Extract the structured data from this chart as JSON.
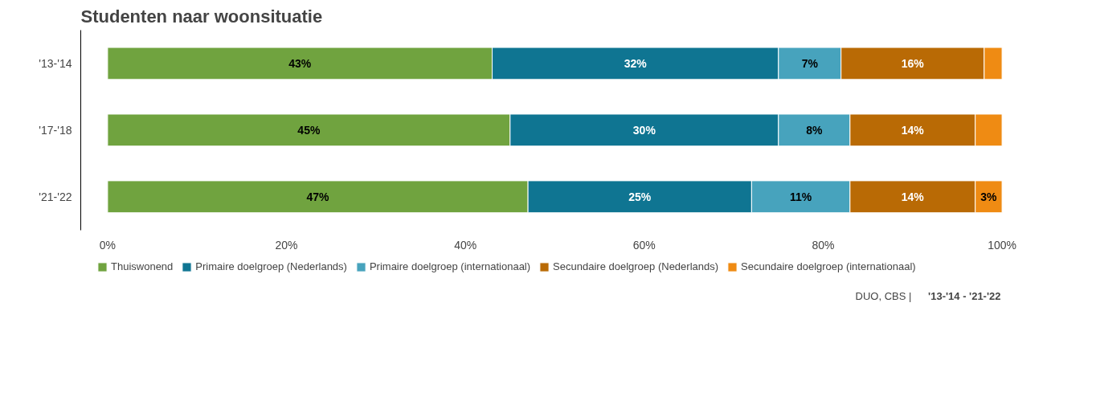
{
  "chart_data": {
    "type": "bar",
    "orientation": "horizontal",
    "stacked": true,
    "title": "Studenten naar woonsituatie",
    "categories": [
      "'13-'14",
      "'17-'18",
      "'21-'22"
    ],
    "series": [
      {
        "name": "Thuiswonend",
        "color": "#70a33f",
        "values": [
          43,
          45,
          47
        ],
        "value_labels": [
          "43%",
          "45%",
          "47%"
        ]
      },
      {
        "name": "Primaire doelgroep (Nederlands)",
        "color": "#0f7592",
        "values": [
          32,
          30,
          25
        ],
        "value_labels": [
          "32%",
          "30%",
          "25%"
        ]
      },
      {
        "name": "Primaire doelgroep (internationaal)",
        "color": "#47a3bd",
        "values": [
          7,
          8,
          11
        ],
        "value_labels": [
          "7%",
          "8%",
          "11%"
        ]
      },
      {
        "name": "Secundaire doelgroep (Nederlands)",
        "color": "#b96a05",
        "values": [
          16,
          14,
          14
        ],
        "value_labels": [
          "16%",
          "14%",
          "14%"
        ]
      },
      {
        "name": "Secundaire doelgroep (internationaal)",
        "color": "#ef8b13",
        "values": [
          2,
          3,
          3
        ],
        "value_labels": [
          null,
          null,
          "3%"
        ]
      }
    ],
    "xlim": [
      0,
      100
    ],
    "xticks": [
      {
        "value": 0,
        "label": "0%"
      },
      {
        "value": 20,
        "label": "20%"
      },
      {
        "value": 40,
        "label": "40%"
      },
      {
        "value": 60,
        "label": "60%"
      },
      {
        "value": 80,
        "label": "80%"
      },
      {
        "value": 100,
        "label": "100%"
      }
    ],
    "grid": false,
    "legend": "bottom",
    "annotations": [
      "DUO, CBS |",
      "'13-'14 - '21-'22"
    ]
  }
}
